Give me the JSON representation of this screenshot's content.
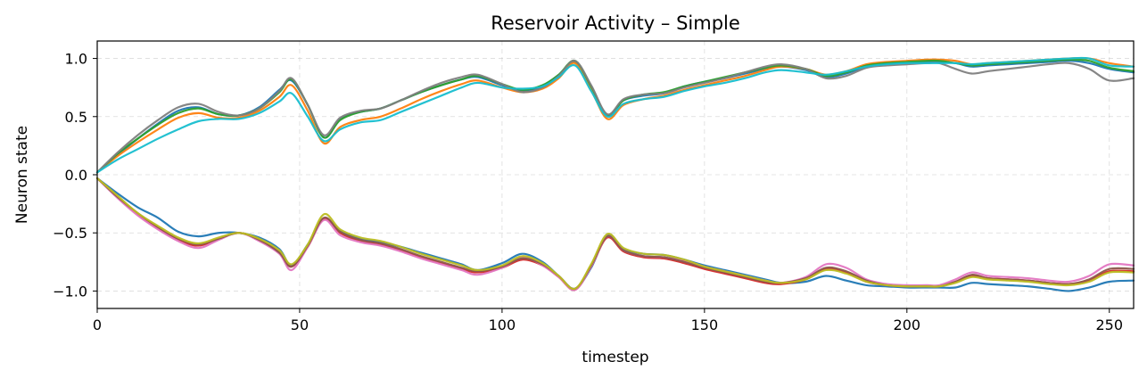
{
  "chart_data": {
    "type": "line",
    "title": "Reservoir Activity – Simple",
    "xlabel": "timestep",
    "ylabel": "Neuron state",
    "xlim": [
      0,
      256
    ],
    "ylim": [
      -1.15,
      1.15
    ],
    "xticks": [
      0,
      50,
      100,
      150,
      200,
      250
    ],
    "xtick_labels": [
      "0",
      "50",
      "100",
      "150",
      "200",
      "250"
    ],
    "yticks": [
      -1.0,
      -0.5,
      0.0,
      0.5,
      1.0
    ],
    "ytick_labels": [
      "−1.0",
      "−0.5",
      "0.0",
      "0.5",
      "1.0"
    ],
    "grid": true,
    "legend": false,
    "x": [
      0,
      5,
      10,
      15,
      20,
      25,
      30,
      35,
      40,
      45,
      48,
      52,
      56,
      60,
      65,
      70,
      75,
      80,
      85,
      90,
      94,
      100,
      105,
      110,
      114,
      118,
      122,
      126,
      130,
      135,
      140,
      145,
      150,
      155,
      160,
      165,
      169,
      175,
      180,
      185,
      190,
      195,
      200,
      205,
      208,
      212,
      216,
      220,
      225,
      230,
      235,
      240,
      245,
      250,
      256
    ],
    "base_upper": [
      0.02,
      0.17,
      0.3,
      0.42,
      0.52,
      0.56,
      0.52,
      0.51,
      0.57,
      0.7,
      0.8,
      0.58,
      0.3,
      0.45,
      0.52,
      0.55,
      0.62,
      0.69,
      0.75,
      0.8,
      0.83,
      0.77,
      0.72,
      0.76,
      0.85,
      0.97,
      0.75,
      0.5,
      0.63,
      0.68,
      0.7,
      0.75,
      0.79,
      0.83,
      0.87,
      0.91,
      0.93,
      0.9,
      0.84,
      0.87,
      0.93,
      0.95,
      0.96,
      0.97,
      0.97,
      0.95,
      0.92,
      0.93,
      0.94,
      0.95,
      0.96,
      0.97,
      0.96,
      0.91,
      0.88
    ],
    "base_lower": [
      -0.03,
      -0.18,
      -0.32,
      -0.43,
      -0.52,
      -0.57,
      -0.53,
      -0.5,
      -0.56,
      -0.66,
      -0.78,
      -0.6,
      -0.36,
      -0.48,
      -0.55,
      -0.58,
      -0.63,
      -0.69,
      -0.74,
      -0.79,
      -0.82,
      -0.79,
      -0.72,
      -0.77,
      -0.87,
      -0.98,
      -0.78,
      -0.52,
      -0.64,
      -0.69,
      -0.7,
      -0.74,
      -0.79,
      -0.83,
      -0.87,
      -0.91,
      -0.93,
      -0.9,
      -0.82,
      -0.85,
      -0.92,
      -0.95,
      -0.96,
      -0.96,
      -0.96,
      -0.93,
      -0.88,
      -0.9,
      -0.91,
      -0.92,
      -0.94,
      -0.95,
      -0.92,
      -0.84,
      -0.84
    ],
    "series": [
      {
        "group": "upper",
        "color": "#1f77b4",
        "offset": [
          0.0,
          0.0,
          0.01,
          0.02,
          0.03,
          0.02,
          0.0,
          0.0,
          0.01,
          0.03,
          0.01,
          0.02,
          0.02,
          0.03,
          0.02,
          0.02,
          0.02,
          0.02,
          0.02,
          0.02,
          0.01,
          0.0,
          0.0,
          0.0,
          0.01,
          0.0,
          0.01,
          0.01,
          0.01,
          0.0,
          0.0,
          0.01,
          0.01,
          0.0,
          0.0,
          0.0,
          0.0,
          0.0,
          0.0,
          0.0,
          0.0,
          0.0,
          0.0,
          0.0,
          0.0,
          0.01,
          0.01,
          0.01,
          0.01,
          0.01,
          0.01,
          0.01,
          0.0,
          0.0,
          0.0
        ]
      },
      {
        "group": "upper",
        "color": "#ff7f0e",
        "offset": [
          0.0,
          -0.01,
          -0.02,
          -0.03,
          -0.03,
          -0.03,
          -0.03,
          -0.02,
          -0.02,
          -0.03,
          -0.03,
          -0.03,
          -0.03,
          -0.04,
          -0.05,
          -0.05,
          -0.05,
          -0.04,
          -0.03,
          -0.02,
          -0.02,
          -0.02,
          -0.01,
          -0.02,
          -0.02,
          -0.01,
          -0.02,
          -0.02,
          -0.03,
          -0.03,
          -0.02,
          -0.02,
          -0.02,
          -0.02,
          -0.02,
          -0.01,
          0.0,
          0.01,
          0.02,
          0.02,
          0.02,
          0.02,
          0.02,
          0.02,
          0.02,
          0.03,
          0.03,
          0.03,
          0.03,
          0.03,
          0.03,
          0.03,
          0.04,
          0.05,
          0.05
        ]
      },
      {
        "group": "upper",
        "color": "#2ca02c",
        "offset": [
          0.0,
          0.01,
          0.01,
          0.01,
          0.01,
          0.01,
          0.0,
          0.0,
          0.0,
          0.01,
          0.02,
          0.02,
          0.02,
          0.02,
          0.02,
          0.02,
          0.02,
          0.02,
          0.02,
          0.02,
          0.02,
          0.01,
          0.01,
          0.01,
          0.01,
          0.01,
          0.01,
          0.01,
          0.01,
          0.01,
          0.01,
          0.01,
          0.01,
          0.01,
          0.01,
          0.01,
          0.01,
          0.01,
          0.01,
          0.01,
          0.01,
          0.01,
          0.01,
          0.01,
          0.01,
          0.01,
          0.02,
          0.02,
          0.02,
          0.02,
          0.02,
          0.02,
          0.02,
          0.01,
          0.01
        ]
      },
      {
        "group": "upper",
        "color": "#7f7f7f",
        "offset": [
          0.0,
          0.02,
          0.04,
          0.05,
          0.06,
          0.05,
          0.02,
          0.0,
          0.0,
          0.02,
          0.03,
          0.02,
          0.04,
          0.04,
          0.03,
          0.02,
          0.02,
          0.03,
          0.04,
          0.04,
          0.03,
          0.01,
          -0.01,
          -0.01,
          0.0,
          0.01,
          0.02,
          0.02,
          0.02,
          0.01,
          0.0,
          0.0,
          0.0,
          0.0,
          0.01,
          0.02,
          0.02,
          0.01,
          -0.01,
          -0.02,
          -0.01,
          -0.01,
          -0.01,
          -0.01,
          -0.01,
          -0.04,
          -0.05,
          -0.04,
          -0.03,
          -0.02,
          -0.01,
          -0.01,
          -0.05,
          -0.1,
          -0.05
        ]
      },
      {
        "group": "upper",
        "color": "#17becf",
        "offset": [
          0.0,
          -0.04,
          -0.08,
          -0.11,
          -0.13,
          -0.1,
          -0.04,
          -0.03,
          -0.04,
          -0.07,
          -0.1,
          -0.08,
          -0.01,
          -0.06,
          -0.07,
          -0.08,
          -0.08,
          -0.08,
          -0.07,
          -0.05,
          -0.04,
          -0.02,
          0.02,
          0.0,
          -0.01,
          -0.03,
          -0.03,
          0.0,
          -0.02,
          -0.03,
          -0.03,
          -0.03,
          -0.03,
          -0.04,
          -0.04,
          -0.03,
          -0.03,
          -0.02,
          0.02,
          0.02,
          0.0,
          0.0,
          0.0,
          -0.01,
          -0.01,
          0.01,
          0.03,
          0.03,
          0.03,
          0.03,
          0.03,
          0.03,
          0.04,
          0.03,
          0.05
        ]
      },
      {
        "group": "lower",
        "color": "#1f77b4",
        "offset": [
          0.0,
          0.02,
          0.04,
          0.06,
          0.03,
          0.04,
          0.03,
          0.0,
          0.02,
          0.02,
          0.0,
          0.0,
          -0.02,
          0.0,
          0.0,
          0.0,
          0.01,
          0.02,
          0.02,
          0.02,
          0.0,
          0.03,
          0.04,
          0.02,
          0.0,
          0.0,
          -0.02,
          0.0,
          0.0,
          0.01,
          0.01,
          0.01,
          0.01,
          0.01,
          0.01,
          0.01,
          0.0,
          -0.02,
          -0.05,
          -0.06,
          -0.03,
          -0.01,
          -0.01,
          -0.01,
          -0.01,
          -0.04,
          -0.05,
          -0.04,
          -0.04,
          -0.04,
          -0.04,
          -0.05,
          -0.05,
          -0.08,
          -0.07
        ]
      },
      {
        "group": "lower",
        "color": "#d62728",
        "offset": [
          0.0,
          -0.01,
          -0.02,
          -0.03,
          -0.04,
          -0.04,
          -0.02,
          0.0,
          0.0,
          -0.01,
          -0.01,
          -0.02,
          -0.02,
          -0.02,
          -0.02,
          -0.02,
          -0.02,
          -0.02,
          -0.02,
          -0.02,
          -0.02,
          -0.01,
          -0.01,
          -0.01,
          -0.01,
          -0.01,
          -0.01,
          -0.02,
          -0.02,
          -0.02,
          -0.02,
          -0.02,
          -0.02,
          -0.02,
          -0.02,
          -0.02,
          -0.01,
          0.0,
          0.01,
          0.01,
          0.0,
          0.0,
          0.0,
          0.0,
          0.0,
          0.01,
          0.01,
          0.01,
          0.01,
          0.01,
          0.01,
          0.01,
          0.01,
          0.01,
          0.01
        ]
      },
      {
        "group": "lower",
        "color": "#e377c2",
        "offset": [
          0.0,
          -0.02,
          -0.03,
          -0.04,
          -0.05,
          -0.06,
          -0.03,
          0.0,
          -0.01,
          -0.02,
          -0.04,
          -0.02,
          -0.03,
          -0.04,
          -0.03,
          -0.03,
          -0.03,
          -0.03,
          -0.03,
          -0.03,
          -0.04,
          -0.01,
          0.01,
          -0.01,
          -0.01,
          -0.01,
          -0.01,
          -0.01,
          -0.01,
          -0.01,
          -0.01,
          0.0,
          0.0,
          0.0,
          0.0,
          0.0,
          0.0,
          0.02,
          0.05,
          0.05,
          0.02,
          0.01,
          0.01,
          0.01,
          0.01,
          0.03,
          0.04,
          0.03,
          0.03,
          0.03,
          0.03,
          0.03,
          0.05,
          0.07,
          0.06
        ]
      },
      {
        "group": "lower",
        "color": "#8c564b",
        "offset": [
          0.0,
          -0.01,
          -0.01,
          -0.02,
          -0.03,
          -0.03,
          -0.02,
          0.0,
          0.0,
          -0.01,
          -0.01,
          -0.01,
          -0.01,
          -0.01,
          -0.01,
          -0.01,
          -0.01,
          -0.01,
          -0.01,
          -0.01,
          -0.01,
          0.0,
          0.0,
          0.0,
          0.0,
          0.0,
          0.0,
          -0.01,
          -0.01,
          -0.01,
          -0.01,
          -0.01,
          -0.01,
          -0.01,
          -0.01,
          -0.01,
          0.0,
          0.01,
          0.02,
          0.02,
          0.01,
          0.0,
          0.0,
          0.0,
          0.0,
          0.01,
          0.02,
          0.01,
          0.01,
          0.01,
          0.01,
          0.01,
          0.02,
          0.03,
          0.03
        ]
      },
      {
        "group": "lower",
        "color": "#bcbd22",
        "offset": [
          0.0,
          0.0,
          -0.01,
          -0.01,
          -0.02,
          -0.02,
          -0.01,
          0.0,
          0.01,
          0.01,
          0.01,
          0.0,
          0.02,
          0.01,
          0.01,
          0.01,
          0.01,
          0.01,
          0.01,
          0.01,
          0.0,
          0.01,
          0.02,
          0.01,
          0.0,
          0.0,
          0.01,
          0.01,
          0.01,
          0.01,
          0.01,
          0.01,
          0.0,
          0.0,
          0.0,
          0.0,
          0.0,
          0.0,
          0.0,
          0.0,
          0.0,
          0.0,
          0.0,
          0.0,
          0.0,
          0.0,
          0.0,
          0.0,
          0.0,
          0.0,
          0.0,
          0.0,
          0.0,
          0.0,
          0.0
        ]
      }
    ]
  }
}
